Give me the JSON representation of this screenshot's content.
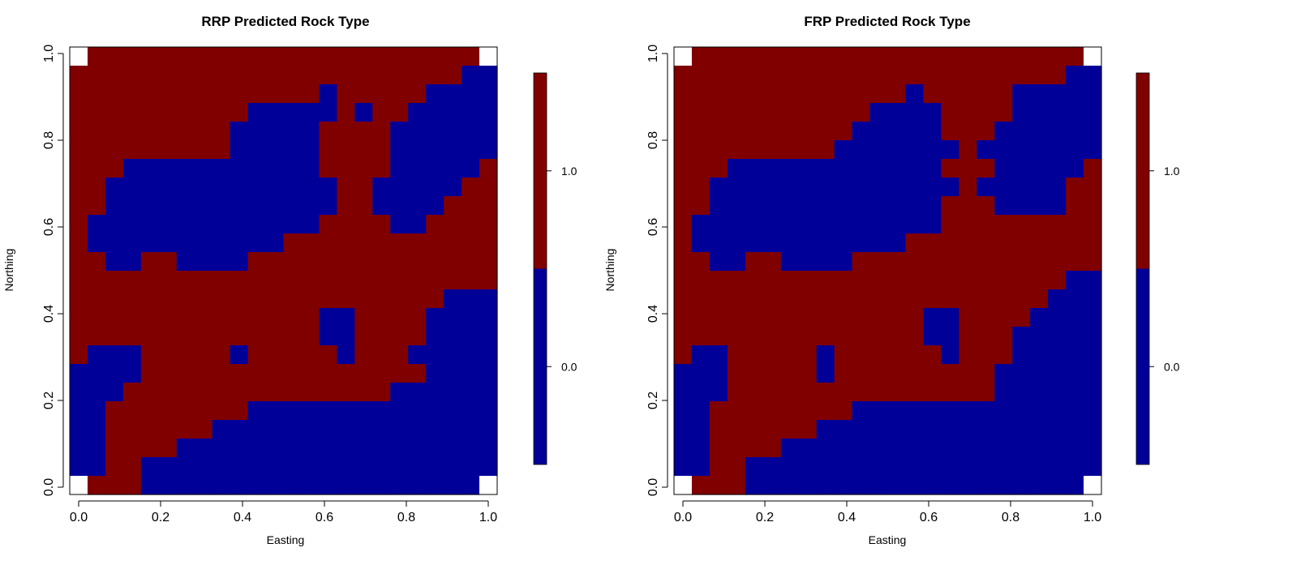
{
  "colors": {
    "blue": "#000099",
    "red": "#800000",
    "missing": "#ffffff"
  },
  "chart_data": [
    {
      "type": "heatmap",
      "title": "RRP Predicted Rock Type",
      "xlabel": "Easting",
      "ylabel": "Northing",
      "xlim": [
        0,
        1
      ],
      "ylim": [
        0,
        1
      ],
      "xticks": [
        "0.0",
        "0.2",
        "0.4",
        "0.6",
        "0.8",
        "1.0"
      ],
      "yticks": [
        "0.0",
        "0.2",
        "0.4",
        "0.6",
        "0.8",
        "1.0"
      ],
      "legend": {
        "position": "right",
        "ticks": [
          "0.0",
          "1.0"
        ],
        "colors": [
          "#000099",
          "#800000"
        ]
      },
      "grid_size": [
        24,
        24
      ],
      "grid_note": "rows from top (Northing 1.0) to bottom (0.0); B=0 (blue), R=1 (red), W=missing",
      "grid": [
        "WRRRRRRRRRRRRRRRRRRRRRRW",
        "RRRRRRRRRRRRRRRRRRRRRRBB",
        "RRRRRRRRRRRRRRBRRRRRBBBB",
        "RRRRRRRRRRBBBBBRBRRBBBBB",
        "RRRRRRRRRBBBBBRRRRBBBBBB",
        "RRRRRRRRRBBBBBRRRRBBBBBB",
        "RRRBBBBBBBBBBBRRRRBBBBBR",
        "RRBBBBBBBBBBBBBRRBBBBBRR",
        "RRBBBBBBBBBBBBBRRBBBBRRR",
        "RBBBBBBBBBBBBBRRRRBBRRRR",
        "RBBBBBBBBBBBRRRRRRRRRRRR",
        "RRBBRRBBBBRRRRRRRRRRRRRR",
        "RRRRRRRRRRRRRRRRRRRRRRRR",
        "RRRRRRRRRRRRRRRRRRRRRBBB",
        "RRRRRRRRRRRRRRBBRRRRBBBB",
        "RRRRRRRRRRRRRRBBRRRRBBBB",
        "RBBBRRRRRBRRRRRBRRRBBBBB",
        "BBBBRRRRRRRRRRRRRRRRBBBB",
        "BBBRRRRRRRRRRRRRRRBBBBBB",
        "BBRRRRRRRRBBBBBBBBBBBBBB",
        "BBRRRRRRBBBBBBBBBBBBBBBB",
        "BBRRRRBBBBBBBBBBBBBBBBBB",
        "BBRRBBBBBBBBBBBBBBBBBBBB",
        "WRRRBBBBBBBBBBBBBBBBBBBW"
      ]
    },
    {
      "type": "heatmap",
      "title": "FRP Predicted Rock Type",
      "xlabel": "Easting",
      "ylabel": "Northing",
      "xlim": [
        0,
        1
      ],
      "ylim": [
        0,
        1
      ],
      "xticks": [
        "0.0",
        "0.2",
        "0.4",
        "0.6",
        "0.8",
        "1.0"
      ],
      "yticks": [
        "0.0",
        "0.2",
        "0.4",
        "0.6",
        "0.8",
        "1.0"
      ],
      "legend": {
        "position": "right",
        "ticks": [
          "0.0",
          "1.0"
        ],
        "colors": [
          "#000099",
          "#800000"
        ]
      },
      "grid_size": [
        24,
        24
      ],
      "grid_note": "rows from top (Northing 1.0) to bottom (0.0); B=0 (blue), R=1 (red), W=missing",
      "grid": [
        "WRRRRRRRRRRRRRRRRRRRRRRW",
        "RRRRRRRRRRRRRRRRRRRRRRBB",
        "RRRRRRRRRRRRRBRRRRRBBBBB",
        "RRRRRRRRRRRBBBBRRRRBBBBB",
        "RRRRRRRRRRBBBBBRRRBBBBBB",
        "RRRRRRRRRBBBBBBBRBBBBBBB",
        "RRRBBBBBBBBBBBBRRRBBBBBR",
        "RRBBBBBBBBBBBBBBRBBBBBRR",
        "RRBBBBBBBBBBBBBRRRBBBBRR",
        "RBBBBBBBBBBBBBBRRRRRRRRR",
        "RBBBBBBBBBBBBRRRRRRRRRRR",
        "RRBBRRBBBBRRRRRRRRRRRRRR",
        "RRRRRRRRRRRRRRRRRRRRRRBB",
        "RRRRRRRRRRRRRRRRRRRRRBBB",
        "RRRRRRRRRRRRRRBBRRRRBBBB",
        "RRRRRRRRRRRRRRBBRRRBBBBB",
        "RBBRRRRRBRRRRRRBRRRBBBBB",
        "BBBRRRRRBRRRRRRRRRBBBBBB",
        "BBBRRRRRRRRRRRRRRRBBBBBB",
        "BBRRRRRRRRBBBBBBBBBBBBBB",
        "BBRRRRRRBBBBBBBBBBBBBBBB",
        "BBRRRRBBBBBBBBBBBBBBBBBB",
        "BBRRBBBBBBBBBBBBBBBBBBBB",
        "WRRRBBBBBBBBBBBBBBBBBBBW"
      ]
    }
  ]
}
